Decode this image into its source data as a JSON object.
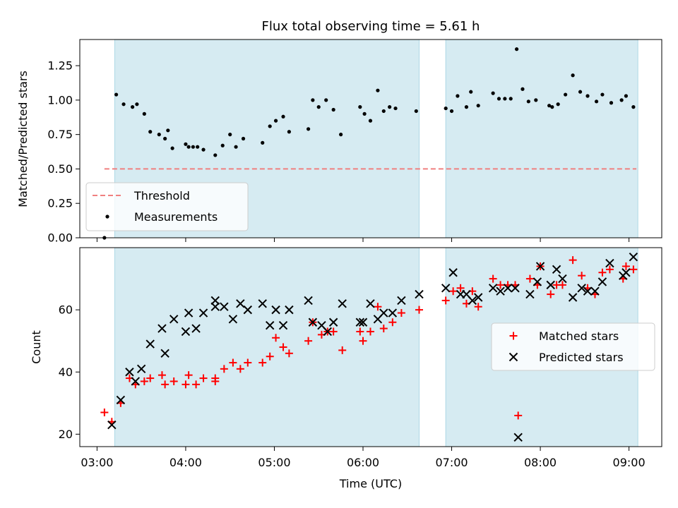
{
  "title": "Flux total observing time = 5.61 h",
  "colors": {
    "shade": "#add8e6",
    "threshold": "#f08080",
    "measurement": "#000000",
    "matched": "#ff0000",
    "predicted": "#000000"
  },
  "chart_data": [
    {
      "type": "scatter",
      "ylabel": "Matched/Predicted stars",
      "xlim": [
        "03:00",
        "09:00"
      ],
      "ylim": [
        0,
        1.44
      ],
      "yticks": [
        "0.00",
        "0.25",
        "0.50",
        "0.75",
        "1.00",
        "1.25"
      ],
      "shaded_intervals": [
        [
          "03:12",
          "06:38"
        ],
        [
          "06:56",
          "09:06"
        ]
      ],
      "threshold": 0.5,
      "threshold_x_range": [
        "03:05",
        "09:05"
      ],
      "legend": [
        "Threshold",
        "Measurements"
      ],
      "legend_position": "lower-left",
      "series": [
        {
          "name": "Measurements",
          "points": [
            [
              "03:05",
              0.0
            ],
            [
              "03:13",
              1.04
            ],
            [
              "03:18",
              0.97
            ],
            [
              "03:24",
              0.95
            ],
            [
              "03:27",
              0.97
            ],
            [
              "03:32",
              0.9
            ],
            [
              "03:36",
              0.77
            ],
            [
              "03:42",
              0.75
            ],
            [
              "03:46",
              0.72
            ],
            [
              "03:48",
              0.78
            ],
            [
              "03:51",
              0.65
            ],
            [
              "04:00",
              0.68
            ],
            [
              "04:02",
              0.66
            ],
            [
              "04:05",
              0.66
            ],
            [
              "04:08",
              0.66
            ],
            [
              "04:12",
              0.64
            ],
            [
              "04:20",
              0.6
            ],
            [
              "04:25",
              0.67
            ],
            [
              "04:30",
              0.75
            ],
            [
              "04:34",
              0.66
            ],
            [
              "04:39",
              0.72
            ],
            [
              "04:52",
              0.69
            ],
            [
              "04:57",
              0.81
            ],
            [
              "05:01",
              0.85
            ],
            [
              "05:06",
              0.88
            ],
            [
              "05:10",
              0.77
            ],
            [
              "05:23",
              0.79
            ],
            [
              "05:26",
              1.0
            ],
            [
              "05:30",
              0.95
            ],
            [
              "05:35",
              1.0
            ],
            [
              "05:40",
              0.93
            ],
            [
              "05:45",
              0.75
            ],
            [
              "05:58",
              0.95
            ],
            [
              "06:01",
              0.9
            ],
            [
              "06:05",
              0.85
            ],
            [
              "06:10",
              1.07
            ],
            [
              "06:14",
              0.92
            ],
            [
              "06:18",
              0.95
            ],
            [
              "06:22",
              0.94
            ],
            [
              "06:36",
              0.92
            ],
            [
              "06:56",
              0.94
            ],
            [
              "07:00",
              0.92
            ],
            [
              "07:04",
              1.03
            ],
            [
              "07:10",
              0.95
            ],
            [
              "07:13",
              1.06
            ],
            [
              "07:18",
              0.96
            ],
            [
              "07:28",
              1.05
            ],
            [
              "07:32",
              1.01
            ],
            [
              "07:36",
              1.01
            ],
            [
              "07:40",
              1.01
            ],
            [
              "07:44",
              1.37
            ],
            [
              "07:48",
              1.08
            ],
            [
              "07:52",
              0.99
            ],
            [
              "07:57",
              1.0
            ],
            [
              "08:06",
              0.96
            ],
            [
              "08:08",
              0.95
            ],
            [
              "08:12",
              0.97
            ],
            [
              "08:17",
              1.04
            ],
            [
              "08:22",
              1.18
            ],
            [
              "08:27",
              1.06
            ],
            [
              "08:32",
              1.03
            ],
            [
              "08:38",
              0.99
            ],
            [
              "08:42",
              1.04
            ],
            [
              "08:48",
              0.98
            ],
            [
              "08:55",
              1.0
            ],
            [
              "08:58",
              1.03
            ],
            [
              "09:03",
              0.95
            ]
          ]
        }
      ]
    },
    {
      "type": "scatter",
      "xlabel": "Time (UTC)",
      "ylabel": "Count",
      "xlim": [
        "03:00",
        "09:00"
      ],
      "xticks": [
        "03:00",
        "04:00",
        "05:00",
        "06:00",
        "07:00",
        "08:00",
        "09:00"
      ],
      "ylim": [
        16,
        80
      ],
      "yticks": [
        "20",
        "40",
        "60"
      ],
      "shaded_intervals": [
        [
          "03:12",
          "06:38"
        ],
        [
          "06:56",
          "09:06"
        ]
      ],
      "legend": [
        "Matched stars",
        "Predicted stars"
      ],
      "legend_position": "center-right",
      "series": [
        {
          "name": "Matched stars",
          "points": [
            [
              "03:05",
              27
            ],
            [
              "03:10",
              24
            ],
            [
              "03:16",
              30
            ],
            [
              "03:22",
              38
            ],
            [
              "03:26",
              36
            ],
            [
              "03:32",
              37
            ],
            [
              "03:36",
              38
            ],
            [
              "03:44",
              39
            ],
            [
              "03:46",
              36
            ],
            [
              "03:52",
              37
            ],
            [
              "04:00",
              36
            ],
            [
              "04:02",
              39
            ],
            [
              "04:07",
              36
            ],
            [
              "04:12",
              38
            ],
            [
              "04:20",
              37
            ],
            [
              "04:20",
              38
            ],
            [
              "04:26",
              41
            ],
            [
              "04:32",
              43
            ],
            [
              "04:37",
              41
            ],
            [
              "04:42",
              43
            ],
            [
              "04:52",
              43
            ],
            [
              "04:57",
              45
            ],
            [
              "05:01",
              51
            ],
            [
              "05:06",
              48
            ],
            [
              "05:10",
              46
            ],
            [
              "05:23",
              50
            ],
            [
              "05:26",
              56
            ],
            [
              "05:32",
              52
            ],
            [
              "05:36",
              53
            ],
            [
              "05:40",
              53
            ],
            [
              "05:46",
              47
            ],
            [
              "05:58",
              53
            ],
            [
              "06:00",
              50
            ],
            [
              "06:05",
              53
            ],
            [
              "06:10",
              61
            ],
            [
              "06:14",
              54
            ],
            [
              "06:20",
              56
            ],
            [
              "06:26",
              59
            ],
            [
              "06:38",
              60
            ],
            [
              "06:56",
              63
            ],
            [
              "07:01",
              66
            ],
            [
              "07:06",
              67
            ],
            [
              "07:10",
              62
            ],
            [
              "07:14",
              66
            ],
            [
              "07:18",
              61
            ],
            [
              "07:28",
              70
            ],
            [
              "07:33",
              68
            ],
            [
              "07:38",
              68
            ],
            [
              "07:43",
              68
            ],
            [
              "07:45",
              26
            ],
            [
              "07:53",
              70
            ],
            [
              "07:58",
              68
            ],
            [
              "08:00",
              74
            ],
            [
              "08:07",
              65
            ],
            [
              "08:11",
              68
            ],
            [
              "08:15",
              68
            ],
            [
              "08:22",
              76
            ],
            [
              "08:28",
              71
            ],
            [
              "08:32",
              67
            ],
            [
              "08:37",
              65
            ],
            [
              "08:42",
              72
            ],
            [
              "08:47",
              73
            ],
            [
              "08:56",
              70
            ],
            [
              "08:58",
              74
            ],
            [
              "09:03",
              73
            ]
          ]
        },
        {
          "name": "Predicted stars",
          "points": [
            [
              "03:10",
              23
            ],
            [
              "03:16",
              31
            ],
            [
              "03:22",
              40
            ],
            [
              "03:26",
              37
            ],
            [
              "03:30",
              41
            ],
            [
              "03:36",
              49
            ],
            [
              "03:44",
              54
            ],
            [
              "03:46",
              46
            ],
            [
              "03:52",
              57
            ],
            [
              "04:00",
              53
            ],
            [
              "04:02",
              59
            ],
            [
              "04:07",
              54
            ],
            [
              "04:12",
              59
            ],
            [
              "04:20",
              63
            ],
            [
              "04:20",
              61
            ],
            [
              "04:26",
              61
            ],
            [
              "04:32",
              57
            ],
            [
              "04:37",
              62
            ],
            [
              "04:42",
              60
            ],
            [
              "04:52",
              62
            ],
            [
              "04:57",
              55
            ],
            [
              "05:01",
              60
            ],
            [
              "05:06",
              55
            ],
            [
              "05:10",
              60
            ],
            [
              "05:23",
              63
            ],
            [
              "05:26",
              56
            ],
            [
              "05:32",
              55
            ],
            [
              "05:36",
              53
            ],
            [
              "05:40",
              56
            ],
            [
              "05:46",
              62
            ],
            [
              "05:58",
              56
            ],
            [
              "06:00",
              56
            ],
            [
              "06:05",
              62
            ],
            [
              "06:10",
              57
            ],
            [
              "06:14",
              59
            ],
            [
              "06:20",
              59
            ],
            [
              "06:26",
              63
            ],
            [
              "06:38",
              65
            ],
            [
              "06:56",
              67
            ],
            [
              "07:01",
              72
            ],
            [
              "07:06",
              65
            ],
            [
              "07:10",
              65
            ],
            [
              "07:14",
              63
            ],
            [
              "07:18",
              64
            ],
            [
              "07:28",
              67
            ],
            [
              "07:33",
              66
            ],
            [
              "07:38",
              67
            ],
            [
              "07:43",
              67
            ],
            [
              "07:45",
              19
            ],
            [
              "07:53",
              65
            ],
            [
              "07:58",
              69
            ],
            [
              "08:00",
              74
            ],
            [
              "08:07",
              68
            ],
            [
              "08:11",
              73
            ],
            [
              "08:15",
              70
            ],
            [
              "08:22",
              64
            ],
            [
              "08:28",
              67
            ],
            [
              "08:32",
              66
            ],
            [
              "08:37",
              66
            ],
            [
              "08:42",
              69
            ],
            [
              "08:47",
              75
            ],
            [
              "08:56",
              71
            ],
            [
              "08:58",
              72
            ],
            [
              "09:03",
              77
            ]
          ]
        }
      ]
    }
  ]
}
